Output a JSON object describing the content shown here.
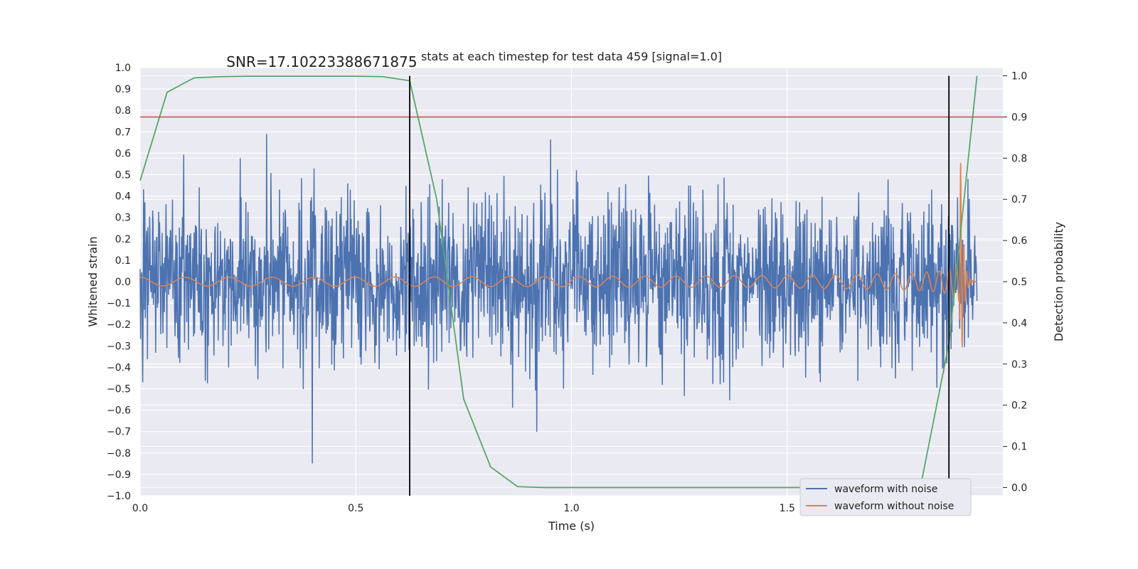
{
  "chart_data": {
    "type": "line",
    "title": "stats at each timestep for test data 459 [signal=1.0]",
    "xlabel": "Time (s)",
    "ylabel": "Whitened strain",
    "y2label": "Detection probability",
    "xlim": [
      0.0,
      2.0
    ],
    "ylim": [
      -1.0,
      1.0
    ],
    "y2lim": [
      -0.02,
      1.02
    ],
    "x_ticks": [
      0.0,
      0.5,
      1.0,
      1.5
    ],
    "x_tick_labels": [
      "0.0",
      "0.5",
      "1.0",
      "1.5"
    ],
    "y_ticks": [
      -1.0,
      -0.9,
      -0.8,
      -0.7,
      -0.6,
      -0.5,
      -0.4,
      -0.3,
      -0.2,
      -0.1,
      0.0,
      0.1,
      0.2,
      0.3,
      0.4,
      0.5,
      0.6,
      0.7,
      0.8,
      0.9,
      1.0
    ],
    "y_tick_labels": [
      "−1.0",
      "−0.9",
      "−0.8",
      "−0.7",
      "−0.6",
      "−0.5",
      "−0.4",
      "−0.3",
      "−0.2",
      "−0.1",
      "0.0",
      "0.1",
      "0.2",
      "0.3",
      "0.4",
      "0.5",
      "0.6",
      "0.7",
      "0.8",
      "0.9",
      "1.0"
    ],
    "y2_ticks": [
      0.0,
      0.1,
      0.2,
      0.3,
      0.4,
      0.5,
      0.6,
      0.7,
      0.8,
      0.9,
      1.0
    ],
    "y2_tick_labels": [
      "0.0",
      "0.1",
      "0.2",
      "0.3",
      "0.4",
      "0.5",
      "0.6",
      "0.7",
      "0.8",
      "0.9",
      "1.0"
    ],
    "grid": true,
    "legend_position": "bottom-right",
    "annotation": {
      "text": "SNR=17.10223388671875",
      "x": 0.2,
      "y": 1.0
    },
    "series": [
      {
        "name": "waveform with noise",
        "axis": "left",
        "color": "#4c72b0",
        "kind": "noise",
        "x_range": [
          0.0,
          1.94
        ],
        "sample_count": 1940,
        "std": 0.2,
        "clip": [
          -0.92,
          1.0
        ]
      },
      {
        "name": "waveform without noise",
        "axis": "left",
        "color": "#dd8452",
        "kind": "chirp",
        "x_range": [
          0.0,
          1.94
        ],
        "merger_time": 1.9,
        "amplitude_start": 0.02,
        "amplitude_peak": 0.8
      },
      {
        "axis": "right",
        "color": "#55a868",
        "x": [
          0.0,
          0.0625,
          0.125,
          0.1875,
          0.25,
          0.3125,
          0.375,
          0.4375,
          0.5,
          0.5625,
          0.625,
          0.6875,
          0.75,
          0.8125,
          0.875,
          0.9375,
          1.0,
          1.0625,
          1.125,
          1.1875,
          1.25,
          1.3125,
          1.375,
          1.4375,
          1.5,
          1.5625,
          1.625,
          1.6875,
          1.75,
          1.8125,
          1.875,
          1.94
        ],
        "y": [
          0.745,
          0.96,
          0.995,
          0.998,
          0.999,
          0.999,
          0.999,
          0.999,
          0.999,
          0.998,
          0.988,
          0.7,
          0.215,
          0.05,
          0.002,
          0.0,
          0.0,
          0.0,
          0.0,
          0.0,
          0.0,
          0.0,
          0.0,
          0.0,
          0.0,
          0.0,
          0.0,
          0.0,
          0.0,
          0.02,
          0.35,
          1.0
        ]
      }
    ],
    "reference_lines": [
      {
        "type": "horizontal",
        "axis": "right",
        "value": 0.9,
        "color": "#c44e52"
      },
      {
        "type": "vertical",
        "x": 0.625,
        "y_range": [
          -0.02,
          1.0
        ],
        "axis": "right",
        "color": "#000000"
      },
      {
        "type": "vertical",
        "x": 1.875,
        "y_range": [
          -0.02,
          1.0
        ],
        "axis": "right",
        "color": "#000000"
      }
    ]
  }
}
